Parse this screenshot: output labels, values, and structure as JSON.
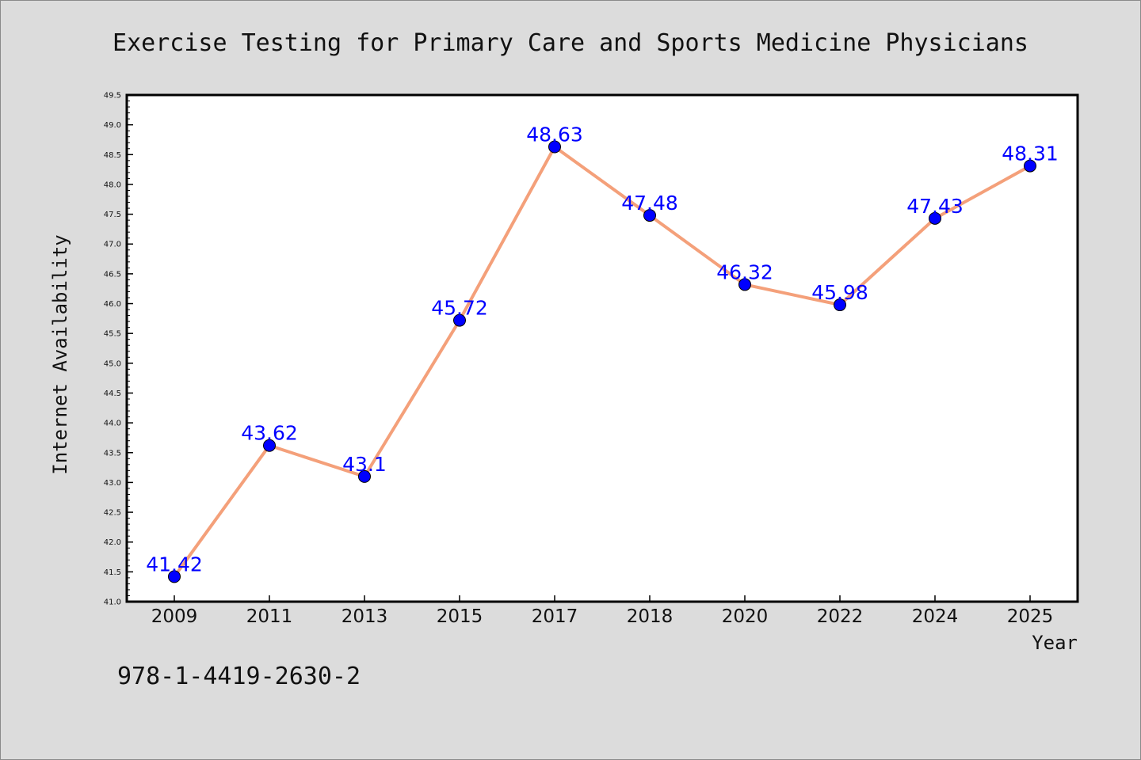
{
  "chart_data": {
    "type": "line",
    "title": "Exercise Testing for Primary Care and Sports Medicine Physicians",
    "xlabel": "Year",
    "ylabel": "Internet Availability",
    "categories": [
      "2009",
      "2011",
      "2013",
      "2015",
      "2017",
      "2018",
      "2020",
      "2022",
      "2024",
      "2025"
    ],
    "values": [
      41.42,
      43.62,
      43.1,
      45.72,
      48.63,
      47.48,
      46.32,
      45.98,
      47.43,
      48.31
    ],
    "data_labels": [
      "41.42",
      "43.62",
      "43.1",
      "45.72",
      "48.63",
      "47.48",
      "46.32",
      "45.98",
      "47.43",
      "48.31"
    ],
    "ylim": [
      41.0,
      49.5
    ],
    "yticks": [
      "41.0",
      "41.5",
      "42.0",
      "42.5",
      "43.0",
      "43.5",
      "44.0",
      "44.5",
      "45.0",
      "45.5",
      "46.0",
      "46.5",
      "47.0",
      "47.5",
      "48.0",
      "48.5",
      "49.0",
      "49.5"
    ],
    "grid": false,
    "legend": "none",
    "line_color": "#f4a07a",
    "marker_color": "#0000ff",
    "label_color": "#0000ff"
  },
  "footer": {
    "isbn": "978-1-4419-2630-2"
  }
}
